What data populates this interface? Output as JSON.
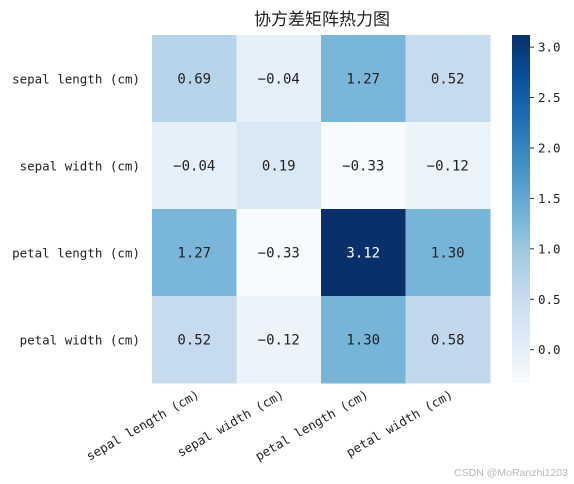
{
  "chart_data": {
    "type": "heatmap",
    "title": "协方差矩阵热力图",
    "row_labels": [
      "sepal length (cm)",
      "sepal width (cm)",
      "petal length (cm)",
      "petal width (cm)"
    ],
    "col_labels": [
      "sepal length (cm)",
      "sepal width (cm)",
      "petal length (cm)",
      "petal width (cm)"
    ],
    "values": [
      [
        0.69,
        -0.04,
        1.27,
        0.52
      ],
      [
        -0.04,
        0.19,
        -0.33,
        -0.12
      ],
      [
        1.27,
        -0.33,
        3.12,
        1.3
      ],
      [
        0.52,
        -0.12,
        1.3,
        0.58
      ]
    ],
    "annotations": [
      [
        "0.69",
        "−0.04",
        "1.27",
        "0.52"
      ],
      [
        "−0.04",
        "0.19",
        "−0.33",
        "−0.12"
      ],
      [
        "1.27",
        "−0.33",
        "3.12",
        "1.30"
      ],
      [
        "0.52",
        "−0.12",
        "1.30",
        "0.58"
      ]
    ],
    "colormap": "Blues",
    "vmin": -0.33,
    "vmax": 3.12,
    "colorbar_ticks": [
      0.0,
      0.5,
      1.0,
      1.5,
      2.0,
      2.5,
      3.0
    ],
    "colorbar_tick_labels": [
      "0.0",
      "0.5",
      "1.0",
      "1.5",
      "2.0",
      "2.5",
      "3.0"
    ],
    "grid": false,
    "legend": "colorbar-right"
  },
  "watermark": "CSDN @MoRanzhi1203"
}
